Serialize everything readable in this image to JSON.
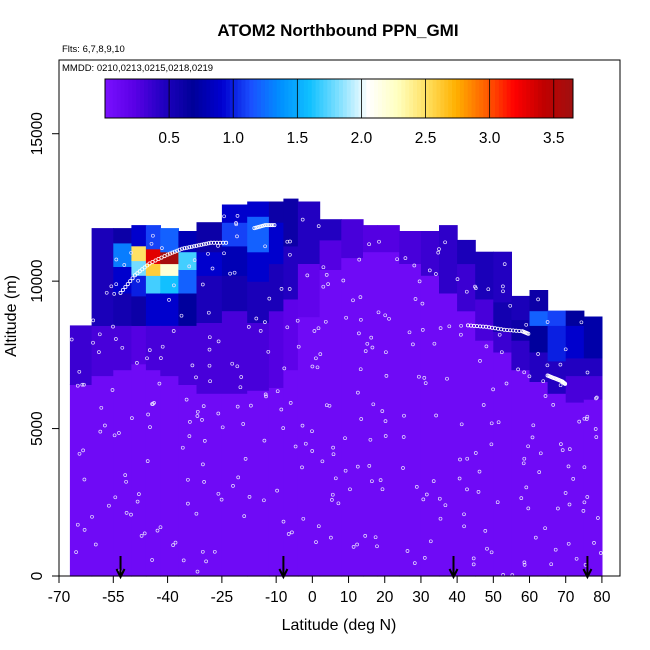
{
  "chart_data": {
    "type": "heatmap",
    "title": "ATOM2 Northbound PPN_GMI",
    "flights_note": "Flts: 6,7,8,9,10",
    "dates_note": "MMDD: 0210,0213,0215,0218,0219",
    "xlabel": "Latitude (deg N)",
    "ylabel": "Altitude (m)",
    "xlim": [
      -70,
      85
    ],
    "ylim": [
      0,
      17500
    ],
    "x_ticks": [
      -70,
      -55,
      -40,
      -25,
      -10,
      0,
      10,
      20,
      30,
      40,
      50,
      60,
      70,
      80
    ],
    "x_tick_labels": [
      "-70",
      "-55",
      "-40",
      "-25",
      "-10",
      "0",
      "10",
      "20",
      "30",
      "40",
      "50",
      "60",
      "70",
      "80"
    ],
    "y_ticks": [
      0,
      5000,
      10000,
      15000
    ],
    "y_tick_labels": [
      "0",
      "5000",
      "10000",
      "15000"
    ],
    "colorbar": {
      "range": [
        0.0,
        3.65
      ],
      "tick_values": [
        0.5,
        1.0,
        1.5,
        2.0,
        2.5,
        3.0,
        3.5
      ],
      "tick_labels": [
        "0.5",
        "1.0",
        "1.5",
        "2.0",
        "2.5",
        "3.0",
        "3.5"
      ],
      "colors": [
        "#7a10ff",
        "#5a00e6",
        "#2000c0",
        "#000099",
        "#0000d0",
        "#1a50ff",
        "#0090ff",
        "#10c0ff",
        "#80e0ff",
        "#ffffff",
        "#ffffc0",
        "#ffe060",
        "#ffb000",
        "#ff6000",
        "#ff0000",
        "#c00000",
        "#a01010"
      ]
    },
    "columns": [
      {
        "lat0": -67,
        "lat1": -61,
        "ztop": 8500,
        "bands": [
          [
            0,
            6500,
            0.08
          ],
          [
            6500,
            8500,
            0.35
          ]
        ]
      },
      {
        "lat0": -61,
        "lat1": -55,
        "ztop": 11800,
        "bands": [
          [
            0,
            6800,
            0.08
          ],
          [
            6800,
            8500,
            0.3
          ],
          [
            8500,
            11800,
            0.5
          ]
        ]
      },
      {
        "lat0": -55,
        "lat1": -50,
        "ztop": 11800,
        "bands": [
          [
            0,
            7000,
            0.08
          ],
          [
            7000,
            8500,
            0.3
          ],
          [
            8500,
            9600,
            0.55
          ],
          [
            9600,
            10500,
            0.9
          ],
          [
            10500,
            11300,
            1.3
          ],
          [
            11300,
            11800,
            0.6
          ]
        ]
      },
      {
        "lat0": -50,
        "lat1": -46,
        "ztop": 11900,
        "bands": [
          [
            0,
            7200,
            0.08
          ],
          [
            7200,
            8500,
            0.25
          ],
          [
            8500,
            9500,
            0.6
          ],
          [
            9500,
            10200,
            1.0
          ],
          [
            10200,
            10700,
            1.8
          ],
          [
            10700,
            11200,
            2.5
          ],
          [
            11200,
            11900,
            0.9
          ]
        ]
      },
      {
        "lat0": -46,
        "lat1": -42,
        "ztop": 11900,
        "bands": [
          [
            0,
            7000,
            0.08
          ],
          [
            7000,
            8500,
            0.3
          ],
          [
            8500,
            9600,
            0.9
          ],
          [
            9600,
            10200,
            1.7
          ],
          [
            10200,
            10600,
            2.6
          ],
          [
            10600,
            11100,
            3.3
          ],
          [
            11100,
            11900,
            1.1
          ]
        ]
      },
      {
        "lat0": -42,
        "lat1": -37,
        "ztop": 11800,
        "bands": [
          [
            0,
            6800,
            0.08
          ],
          [
            6800,
            8500,
            0.3
          ],
          [
            8500,
            9600,
            0.9
          ],
          [
            9600,
            10200,
            1.6
          ],
          [
            10200,
            10600,
            2.2
          ],
          [
            10600,
            11000,
            3.6
          ],
          [
            11000,
            11800,
            1.2
          ]
        ]
      },
      {
        "lat0": -37,
        "lat1": -32,
        "ztop": 11700,
        "bands": [
          [
            0,
            6500,
            0.08
          ],
          [
            6500,
            8500,
            0.3
          ],
          [
            8500,
            9600,
            0.7
          ],
          [
            9600,
            10400,
            1.2
          ],
          [
            10400,
            11000,
            1.7
          ],
          [
            11000,
            11700,
            0.8
          ]
        ]
      },
      {
        "lat0": -32,
        "lat1": -25,
        "ztop": 12000,
        "bands": [
          [
            0,
            6200,
            0.08
          ],
          [
            6200,
            8600,
            0.3
          ],
          [
            8600,
            10200,
            0.5
          ],
          [
            10200,
            11000,
            0.9
          ],
          [
            11000,
            12000,
            0.6
          ]
        ]
      },
      {
        "lat0": -25,
        "lat1": -18,
        "ztop": 12600,
        "bands": [
          [
            0,
            6200,
            0.08
          ],
          [
            6200,
            9000,
            0.3
          ],
          [
            9000,
            10200,
            0.55
          ],
          [
            10200,
            11200,
            0.8
          ],
          [
            11200,
            12000,
            1.1
          ],
          [
            12000,
            12600,
            0.9
          ]
        ]
      },
      {
        "lat0": -18,
        "lat1": -12,
        "ztop": 12700,
        "bands": [
          [
            0,
            6300,
            0.08
          ],
          [
            6300,
            8600,
            0.3
          ],
          [
            8600,
            10000,
            0.5
          ],
          [
            10000,
            11000,
            0.9
          ],
          [
            11000,
            12200,
            1.2
          ],
          [
            12200,
            12700,
            0.9
          ]
        ]
      },
      {
        "lat0": -12,
        "lat1": -8,
        "ztop": 12700,
        "bands": [
          [
            0,
            6400,
            0.08
          ],
          [
            6400,
            9000,
            0.25
          ],
          [
            9000,
            10600,
            0.5
          ],
          [
            10600,
            12000,
            0.9
          ],
          [
            12000,
            12700,
            0.6
          ]
        ]
      },
      {
        "lat0": -8,
        "lat1": -4,
        "ztop": 12800,
        "bands": [
          [
            0,
            7000,
            0.08
          ],
          [
            7000,
            9400,
            0.2
          ],
          [
            9400,
            11200,
            0.45
          ],
          [
            11200,
            12800,
            0.6
          ]
        ]
      },
      {
        "lat0": -4,
        "lat1": 2,
        "ztop": 12700,
        "bands": [
          [
            0,
            8800,
            0.08
          ],
          [
            8800,
            10600,
            0.18
          ],
          [
            10600,
            12700,
            0.45
          ]
        ]
      },
      {
        "lat0": 2,
        "lat1": 8,
        "ztop": 12100,
        "bands": [
          [
            0,
            10400,
            0.08
          ],
          [
            10400,
            11400,
            0.25
          ],
          [
            11400,
            12100,
            0.45
          ]
        ]
      },
      {
        "lat0": 8,
        "lat1": 14,
        "ztop": 12100,
        "bands": [
          [
            0,
            10800,
            0.08
          ],
          [
            10800,
            12100,
            0.3
          ]
        ]
      },
      {
        "lat0": 14,
        "lat1": 18,
        "ztop": 11900,
        "bands": [
          [
            0,
            11000,
            0.08
          ],
          [
            11000,
            11900,
            0.25
          ]
        ]
      },
      {
        "lat0": 18,
        "lat1": 24,
        "ztop": 11900,
        "bands": [
          [
            0,
            11000,
            0.08
          ],
          [
            11000,
            11900,
            0.25
          ]
        ]
      },
      {
        "lat0": 24,
        "lat1": 30,
        "ztop": 11700,
        "bands": [
          [
            0,
            10600,
            0.08
          ],
          [
            10600,
            11700,
            0.3
          ]
        ]
      },
      {
        "lat0": 30,
        "lat1": 35,
        "ztop": 11700,
        "bands": [
          [
            0,
            10200,
            0.08
          ],
          [
            10200,
            11700,
            0.35
          ]
        ]
      },
      {
        "lat0": 35,
        "lat1": 40,
        "ztop": 11900,
        "bands": [
          [
            0,
            9600,
            0.08
          ],
          [
            9600,
            11900,
            0.4
          ]
        ]
      },
      {
        "lat0": 40,
        "lat1": 45,
        "ztop": 11400,
        "bands": [
          [
            0,
            9000,
            0.08
          ],
          [
            9000,
            10600,
            0.35
          ],
          [
            10600,
            11400,
            0.5
          ]
        ]
      },
      {
        "lat0": 45,
        "lat1": 50,
        "ztop": 11000,
        "bands": [
          [
            0,
            8000,
            0.08
          ],
          [
            8000,
            9400,
            0.3
          ],
          [
            9400,
            11000,
            0.5
          ]
        ]
      },
      {
        "lat0": 50,
        "lat1": 55,
        "ztop": 11000,
        "bands": [
          [
            0,
            7600,
            0.08
          ],
          [
            7600,
            8300,
            0.35
          ],
          [
            8300,
            9300,
            0.55
          ],
          [
            9300,
            11000,
            0.45
          ]
        ]
      },
      {
        "lat0": 55,
        "lat1": 60,
        "ztop": 9500,
        "bands": [
          [
            0,
            7000,
            0.08
          ],
          [
            7000,
            8000,
            0.4
          ],
          [
            8000,
            8700,
            0.6
          ],
          [
            8700,
            9500,
            0.5
          ]
        ]
      },
      {
        "lat0": 60,
        "lat1": 65,
        "ztop": 9700,
        "bands": [
          [
            0,
            6600,
            0.08
          ],
          [
            6600,
            7600,
            0.45
          ],
          [
            7600,
            8500,
            0.7
          ],
          [
            8500,
            9000,
            1.2
          ],
          [
            9000,
            9700,
            0.6
          ]
        ]
      },
      {
        "lat0": 65,
        "lat1": 70,
        "ztop": 9000,
        "bands": [
          [
            0,
            6200,
            0.08
          ],
          [
            6200,
            7300,
            0.45
          ],
          [
            7300,
            8500,
            1.0
          ],
          [
            8500,
            9000,
            1.1
          ]
        ]
      },
      {
        "lat0": 70,
        "lat1": 75,
        "ztop": 9000,
        "bands": [
          [
            0,
            5900,
            0.08
          ],
          [
            5900,
            6800,
            0.3
          ],
          [
            6800,
            7400,
            0.45
          ],
          [
            7400,
            8500,
            0.9
          ],
          [
            8500,
            9000,
            0.7
          ]
        ]
      },
      {
        "lat0": 75,
        "lat1": 80,
        "ztop": 8800,
        "bands": [
          [
            0,
            6000,
            0.08
          ],
          [
            6000,
            6800,
            0.3
          ],
          [
            6800,
            7400,
            0.45
          ],
          [
            7400,
            8800,
            0.75
          ]
        ]
      }
    ],
    "flight_tracks": [
      {
        "lat": [
          -53,
          -49,
          -45,
          -40,
          -36,
          -32,
          -28,
          -23
        ],
        "alt": [
          9600,
          10200,
          10600,
          10900,
          11100,
          11200,
          11300,
          11300
        ]
      },
      {
        "lat": [
          -16,
          -13,
          -10
        ],
        "alt": [
          11800,
          11900,
          11900
        ]
      },
      {
        "lat": [
          43,
          48,
          53,
          58,
          60
        ],
        "alt": [
          8500,
          8450,
          8350,
          8300,
          8200
        ]
      },
      {
        "lat": [
          65,
          67,
          69,
          70
        ],
        "alt": [
          6800,
          6700,
          6600,
          6500
        ]
      }
    ],
    "arrows_lat": [
      -53,
      -8,
      39,
      76
    ],
    "points_seed": 20240219
  }
}
